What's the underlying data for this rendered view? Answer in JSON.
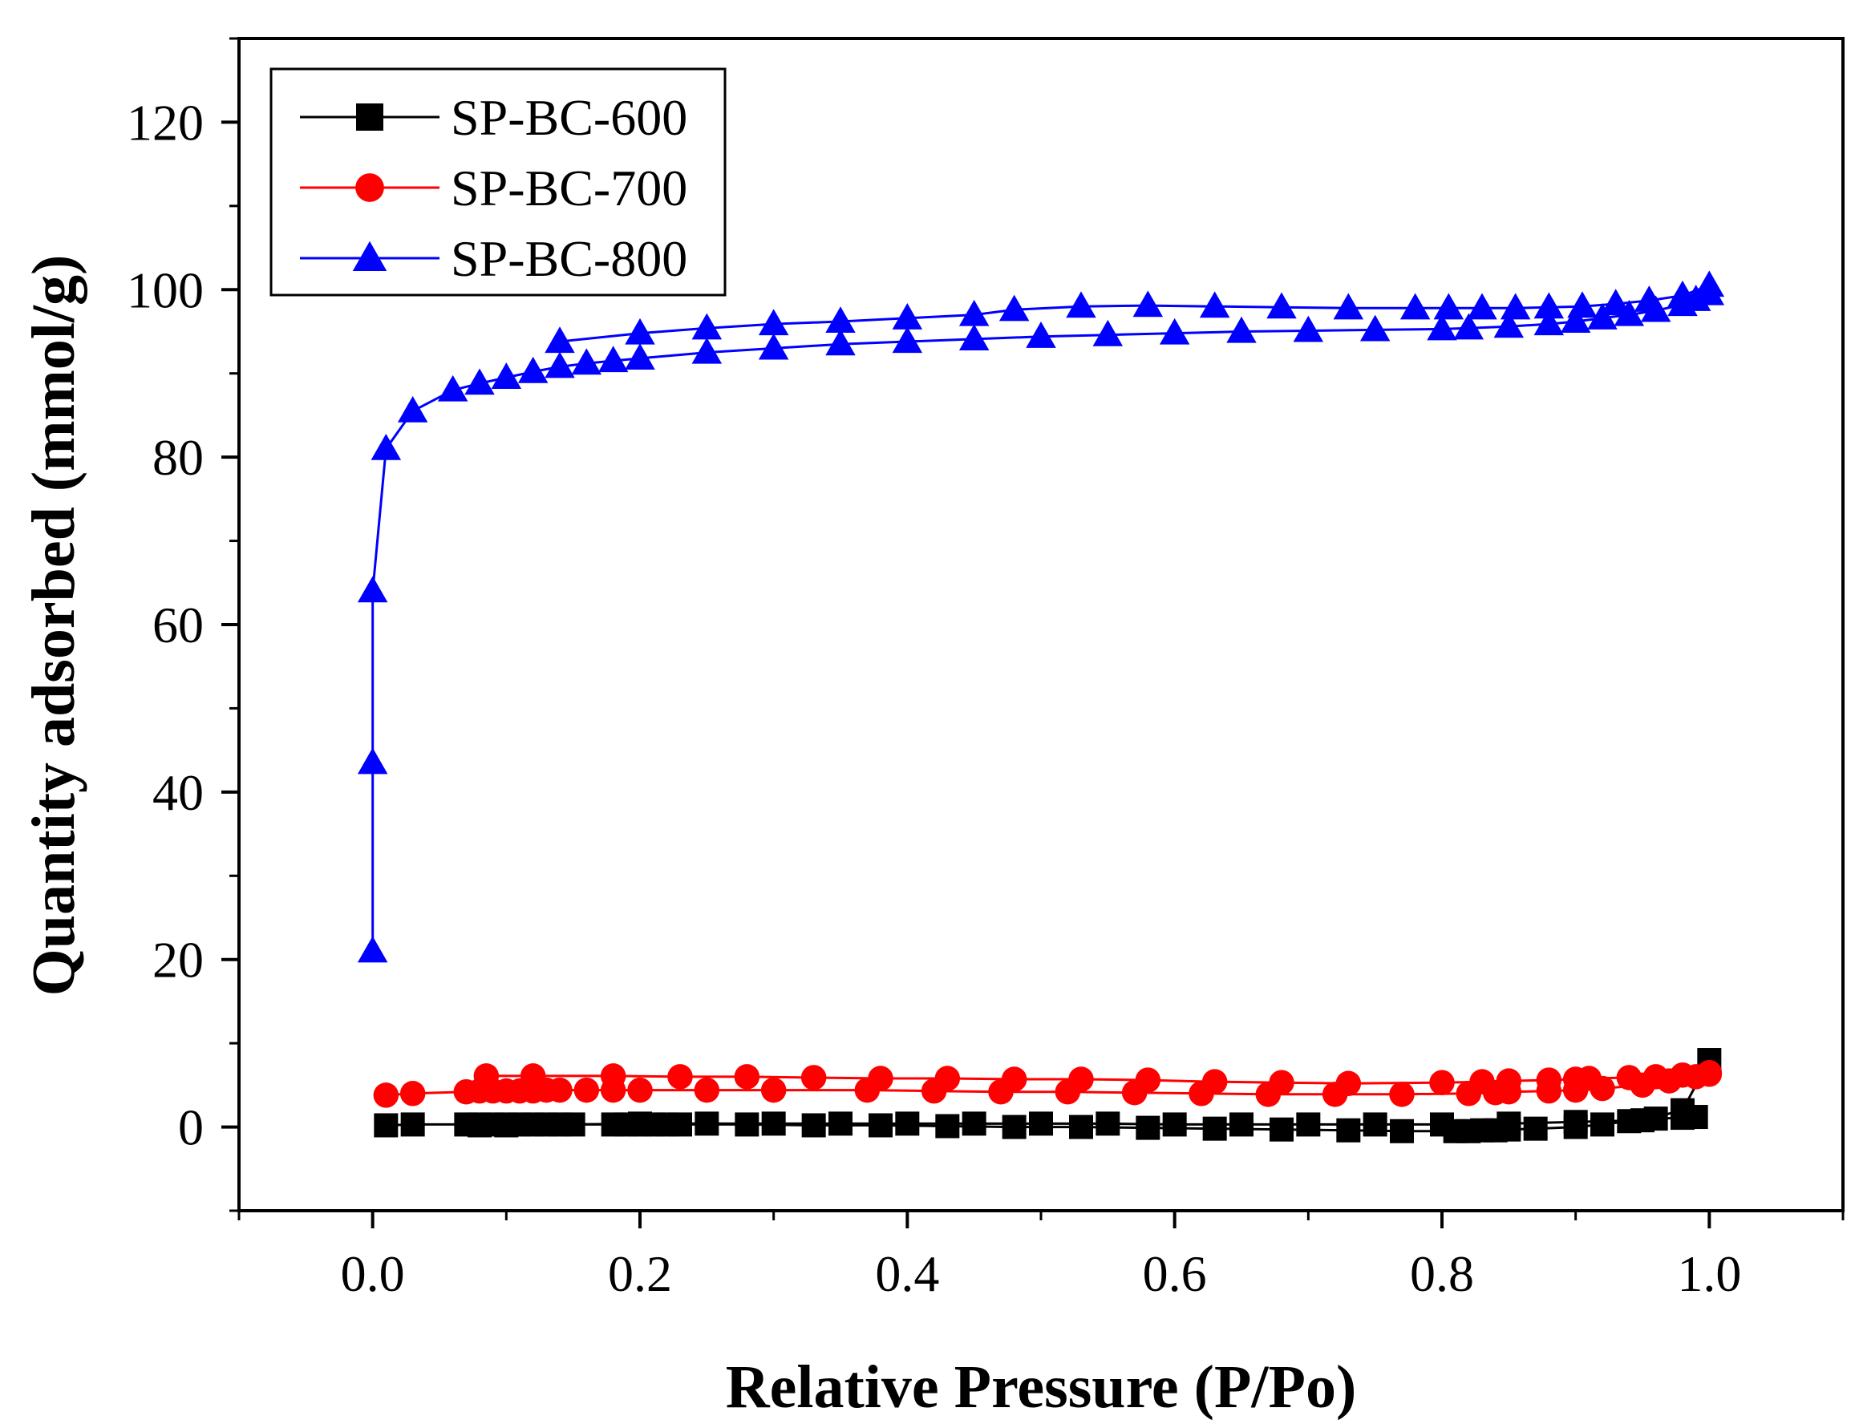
{
  "chart_data": {
    "type": "line",
    "title": "",
    "xlabel": "Relative Pressure (P/Po)",
    "ylabel": "Quantity adsorbed (mmol/g)",
    "xlim": [
      -0.1,
      1.1
    ],
    "ylim": [
      -10,
      130
    ],
    "xticks": [
      0.0,
      0.2,
      0.4,
      0.6,
      0.8,
      1.0
    ],
    "xtick_labels": [
      "0.0",
      "0.2",
      "0.4",
      "0.6",
      "0.8",
      "1.0"
    ],
    "yticks": [
      0,
      20,
      40,
      60,
      80,
      100,
      120
    ],
    "ytick_labels": [
      "0",
      "20",
      "40",
      "60",
      "80",
      "100",
      "120"
    ],
    "legend_position": "top-left",
    "series": [
      {
        "name": "SP-BC-600",
        "color": "#000000",
        "marker": "square",
        "adsorption": [
          [
            0.01,
            0.2
          ],
          [
            0.03,
            0.3
          ],
          [
            0.07,
            0.3
          ],
          [
            0.08,
            0.3
          ],
          [
            0.09,
            0.3
          ],
          [
            0.1,
            0.3
          ],
          [
            0.11,
            0.3
          ],
          [
            0.12,
            0.3
          ],
          [
            0.13,
            0.3
          ],
          [
            0.14,
            0.3
          ],
          [
            0.18,
            0.3
          ],
          [
            0.19,
            0.3
          ],
          [
            0.2,
            0.3
          ],
          [
            0.21,
            0.3
          ],
          [
            0.22,
            0.3
          ],
          [
            0.23,
            0.3
          ],
          [
            0.28,
            0.3
          ],
          [
            0.33,
            0.2
          ],
          [
            0.38,
            0.2
          ],
          [
            0.43,
            0.1
          ],
          [
            0.48,
            0.0
          ],
          [
            0.53,
            0.0
          ],
          [
            0.58,
            -0.1
          ],
          [
            0.63,
            -0.2
          ],
          [
            0.68,
            -0.3
          ],
          [
            0.73,
            -0.4
          ],
          [
            0.77,
            -0.5
          ],
          [
            0.81,
            -0.5
          ],
          [
            0.82,
            -0.5
          ],
          [
            0.83,
            -0.4
          ],
          [
            0.84,
            -0.4
          ],
          [
            0.85,
            -0.3
          ],
          [
            0.87,
            -0.2
          ],
          [
            0.9,
            0.0
          ],
          [
            0.92,
            0.3
          ],
          [
            0.94,
            0.7
          ],
          [
            0.96,
            1.0
          ],
          [
            0.98,
            1.1
          ],
          [
            0.99,
            1.2
          ]
        ],
        "desorption": [
          [
            1.0,
            8.0
          ],
          [
            0.98,
            2.0
          ],
          [
            0.95,
            0.8
          ],
          [
            0.9,
            0.6
          ],
          [
            0.85,
            0.4
          ],
          [
            0.8,
            0.3
          ],
          [
            0.75,
            0.3
          ],
          [
            0.7,
            0.3
          ],
          [
            0.65,
            0.3
          ],
          [
            0.6,
            0.3
          ],
          [
            0.55,
            0.4
          ],
          [
            0.5,
            0.4
          ],
          [
            0.45,
            0.4
          ],
          [
            0.4,
            0.4
          ],
          [
            0.35,
            0.4
          ],
          [
            0.3,
            0.4
          ],
          [
            0.25,
            0.4
          ],
          [
            0.2,
            0.4
          ],
          [
            0.15,
            0.3
          ],
          [
            0.1,
            0.2
          ],
          [
            0.08,
            0.2
          ]
        ]
      },
      {
        "name": "SP-BC-700",
        "color": "#ff0000",
        "marker": "circle",
        "adsorption": [
          [
            0.01,
            3.8
          ],
          [
            0.03,
            4.0
          ],
          [
            0.07,
            4.2
          ],
          [
            0.08,
            4.3
          ],
          [
            0.09,
            4.3
          ],
          [
            0.1,
            4.3
          ],
          [
            0.11,
            4.3
          ],
          [
            0.12,
            4.3
          ],
          [
            0.13,
            4.4
          ],
          [
            0.14,
            4.4
          ],
          [
            0.16,
            4.4
          ],
          [
            0.18,
            4.4
          ],
          [
            0.2,
            4.4
          ],
          [
            0.25,
            4.4
          ],
          [
            0.3,
            4.4
          ],
          [
            0.37,
            4.4
          ],
          [
            0.42,
            4.3
          ],
          [
            0.47,
            4.2
          ],
          [
            0.52,
            4.2
          ],
          [
            0.57,
            4.1
          ],
          [
            0.62,
            4.0
          ],
          [
            0.67,
            3.9
          ],
          [
            0.72,
            3.9
          ],
          [
            0.77,
            3.9
          ],
          [
            0.82,
            4.0
          ],
          [
            0.84,
            4.1
          ],
          [
            0.85,
            4.2
          ],
          [
            0.88,
            4.3
          ],
          [
            0.9,
            4.4
          ],
          [
            0.92,
            4.6
          ],
          [
            0.95,
            5.0
          ],
          [
            0.97,
            5.5
          ],
          [
            0.99,
            6.0
          ],
          [
            1.0,
            6.3
          ]
        ],
        "desorption": [
          [
            1.0,
            6.5
          ],
          [
            0.98,
            6.2
          ],
          [
            0.96,
            6.0
          ],
          [
            0.94,
            5.9
          ],
          [
            0.91,
            5.8
          ],
          [
            0.9,
            5.7
          ],
          [
            0.88,
            5.6
          ],
          [
            0.85,
            5.5
          ],
          [
            0.83,
            5.4
          ],
          [
            0.8,
            5.3
          ],
          [
            0.73,
            5.2
          ],
          [
            0.68,
            5.3
          ],
          [
            0.63,
            5.4
          ],
          [
            0.58,
            5.6
          ],
          [
            0.53,
            5.7
          ],
          [
            0.48,
            5.7
          ],
          [
            0.43,
            5.8
          ],
          [
            0.38,
            5.8
          ],
          [
            0.33,
            5.9
          ],
          [
            0.28,
            6.0
          ],
          [
            0.23,
            6.0
          ],
          [
            0.18,
            6.1
          ],
          [
            0.12,
            6.1
          ],
          [
            0.085,
            6.1
          ]
        ]
      },
      {
        "name": "SP-BC-800",
        "color": "#0000ff",
        "marker": "triangle",
        "adsorption": [
          [
            0.0,
            21.0
          ],
          [
            0.0,
            43.5
          ],
          [
            0.0,
            64.0
          ],
          [
            0.01,
            81.0
          ],
          [
            0.03,
            85.5
          ],
          [
            0.06,
            88.0
          ],
          [
            0.08,
            88.8
          ],
          [
            0.1,
            89.5
          ],
          [
            0.12,
            90.2
          ],
          [
            0.14,
            90.8
          ],
          [
            0.16,
            91.2
          ],
          [
            0.18,
            91.5
          ],
          [
            0.2,
            91.8
          ],
          [
            0.25,
            92.5
          ],
          [
            0.3,
            93.0
          ],
          [
            0.35,
            93.5
          ],
          [
            0.4,
            93.8
          ],
          [
            0.45,
            94.1
          ],
          [
            0.5,
            94.4
          ],
          [
            0.55,
            94.6
          ],
          [
            0.6,
            94.8
          ],
          [
            0.65,
            95.0
          ],
          [
            0.7,
            95.1
          ],
          [
            0.75,
            95.2
          ],
          [
            0.8,
            95.3
          ],
          [
            0.82,
            95.4
          ],
          [
            0.85,
            95.6
          ],
          [
            0.88,
            95.9
          ],
          [
            0.9,
            96.2
          ],
          [
            0.92,
            96.6
          ],
          [
            0.94,
            97.0
          ],
          [
            0.96,
            97.5
          ],
          [
            0.98,
            98.2
          ],
          [
            0.99,
            98.8
          ],
          [
            1.0,
            99.5
          ]
        ],
        "desorption": [
          [
            1.0,
            100.5
          ],
          [
            0.98,
            99.3
          ],
          [
            0.955,
            98.7
          ],
          [
            0.93,
            98.3
          ],
          [
            0.905,
            98.0
          ],
          [
            0.88,
            97.9
          ],
          [
            0.855,
            97.8
          ],
          [
            0.83,
            97.8
          ],
          [
            0.805,
            97.8
          ],
          [
            0.78,
            97.8
          ],
          [
            0.73,
            97.8
          ],
          [
            0.68,
            97.9
          ],
          [
            0.63,
            98.0
          ],
          [
            0.58,
            98.1
          ],
          [
            0.53,
            98.0
          ],
          [
            0.48,
            97.6
          ],
          [
            0.45,
            97.0
          ],
          [
            0.4,
            96.6
          ],
          [
            0.35,
            96.2
          ],
          [
            0.3,
            95.9
          ],
          [
            0.25,
            95.4
          ],
          [
            0.2,
            94.8
          ],
          [
            0.14,
            93.8
          ]
        ]
      }
    ]
  }
}
